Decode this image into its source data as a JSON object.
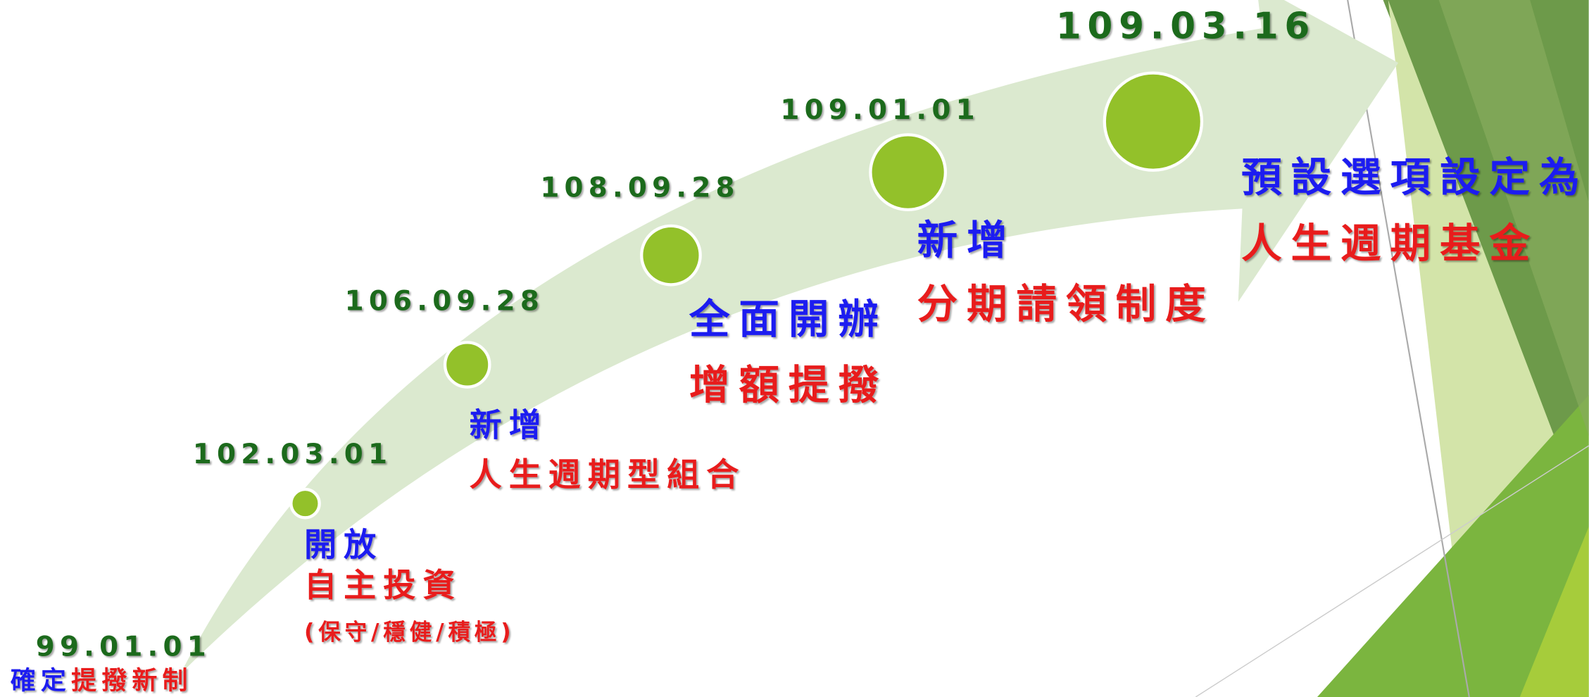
{
  "milestones": [
    {
      "date": "99.01.01",
      "action": "確定",
      "detail": "提撥新制"
    },
    {
      "date": "102.03.01",
      "action": "開放",
      "detail": "自主投資",
      "note": "(保守/穩健/積極)"
    },
    {
      "date": "106.09.28",
      "action": "新增",
      "detail": "人生週期型組合"
    },
    {
      "date": "108.09.28",
      "action": "全面開辦",
      "detail": "增額提撥"
    },
    {
      "date": "109.01.01",
      "action": "新增",
      "detail": "分期請領制度"
    },
    {
      "date": "109.03.16",
      "action": "預設選項設定為",
      "detail": "人生週期基金"
    }
  ]
}
